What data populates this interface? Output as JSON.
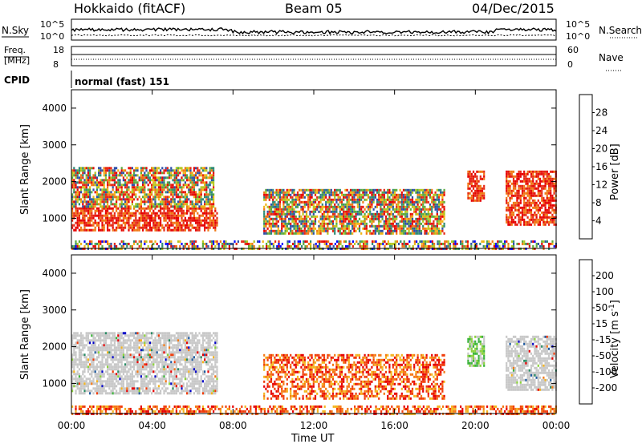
{
  "header": {
    "station": "Hokkaido (fitACF)",
    "beam": "Beam 05",
    "date": "04/Dec/2015"
  },
  "strip_labels": {
    "nsky": "N.Sky",
    "nsky_ticks": [
      "10^5",
      "10^0"
    ],
    "nsearch": "N.Search",
    "nsearch_ticks": [
      "10^5",
      "10^0"
    ],
    "freq_label_1": "Freq.",
    "freq_label_2": "[MHz]",
    "freq_ticks": [
      "18",
      "8"
    ],
    "nave": "Nave",
    "nave_ticks": [
      "60",
      "0"
    ],
    "cpid": "CPID",
    "mode": "normal (fast) 151"
  },
  "chart_data": [
    {
      "type": "heatmap",
      "panel": "power",
      "ylabel": "Slant Range [km]",
      "xlabel": "",
      "yticks": [
        "1000",
        "2000",
        "3000",
        "4000"
      ],
      "ylim": [
        180,
        4500
      ],
      "colorbar": {
        "label": "Power [dB]",
        "ticks": [
          "4",
          "8",
          "12",
          "16",
          "20",
          "24",
          "28"
        ],
        "range": [
          0,
          30
        ],
        "colors": [
          "#0000ff",
          "#2e4fa8",
          "#2e8a74",
          "#5aaa3c",
          "#b4c81e",
          "#f0b414",
          "#f07814",
          "#e62814",
          "#e60000"
        ]
      },
      "regions": [
        {
          "t0": 0.0,
          "t1": 7.2,
          "r0": 700,
          "r1": 1300,
          "level": "high"
        },
        {
          "t0": 0.0,
          "t1": 7.0,
          "r0": 1300,
          "r1": 2400,
          "level": "mixed"
        },
        {
          "t0": 9.5,
          "t1": 18.5,
          "r0": 600,
          "r1": 1800,
          "level": "mixed"
        },
        {
          "t0": 19.6,
          "t1": 20.4,
          "r0": 1500,
          "r1": 2300,
          "level": "high"
        },
        {
          "t0": 21.5,
          "t1": 24.0,
          "r0": 800,
          "r1": 2300,
          "level": "high"
        },
        {
          "t0": 0.0,
          "t1": 24.0,
          "r0": 180,
          "r1": 400,
          "level": "low"
        }
      ]
    },
    {
      "type": "heatmap",
      "panel": "velocity",
      "ylabel": "Slant Range [km]",
      "xlabel": "Time UT",
      "xticks": [
        "00:00",
        "04:00",
        "08:00",
        "12:00",
        "16:00",
        "20:00",
        "00:00"
      ],
      "yticks": [
        "1000",
        "2000",
        "3000",
        "4000"
      ],
      "ylim": [
        180,
        4500
      ],
      "colorbar": {
        "label": "Velocity [m s",
        "label_sup": "-1",
        "label_end": "]",
        "ticks": [
          "-200",
          "-100",
          "-50",
          "-15",
          "15",
          "50",
          "100",
          "200"
        ],
        "colors": [
          "#e60000",
          "#f03c0a",
          "#f57814",
          "#f5b41e",
          "#c8c8c8",
          "#8cd23c",
          "#3cb43c",
          "#288c64",
          "#1e5aa0",
          "#0000c8"
        ]
      },
      "regions": [
        {
          "t0": 0.0,
          "t1": 7.2,
          "r0": 700,
          "r1": 2400,
          "level": "ground"
        },
        {
          "t0": 9.5,
          "t1": 18.5,
          "r0": 600,
          "r1": 1800,
          "level": "negative"
        },
        {
          "t0": 19.6,
          "t1": 20.4,
          "r0": 1500,
          "r1": 2300,
          "level": "mixed"
        },
        {
          "t0": 21.5,
          "t1": 24.0,
          "r0": 800,
          "r1": 2300,
          "level": "ground"
        },
        {
          "t0": 0.0,
          "t1": 24.0,
          "r0": 180,
          "r1": 400,
          "level": "negative"
        }
      ]
    }
  ]
}
